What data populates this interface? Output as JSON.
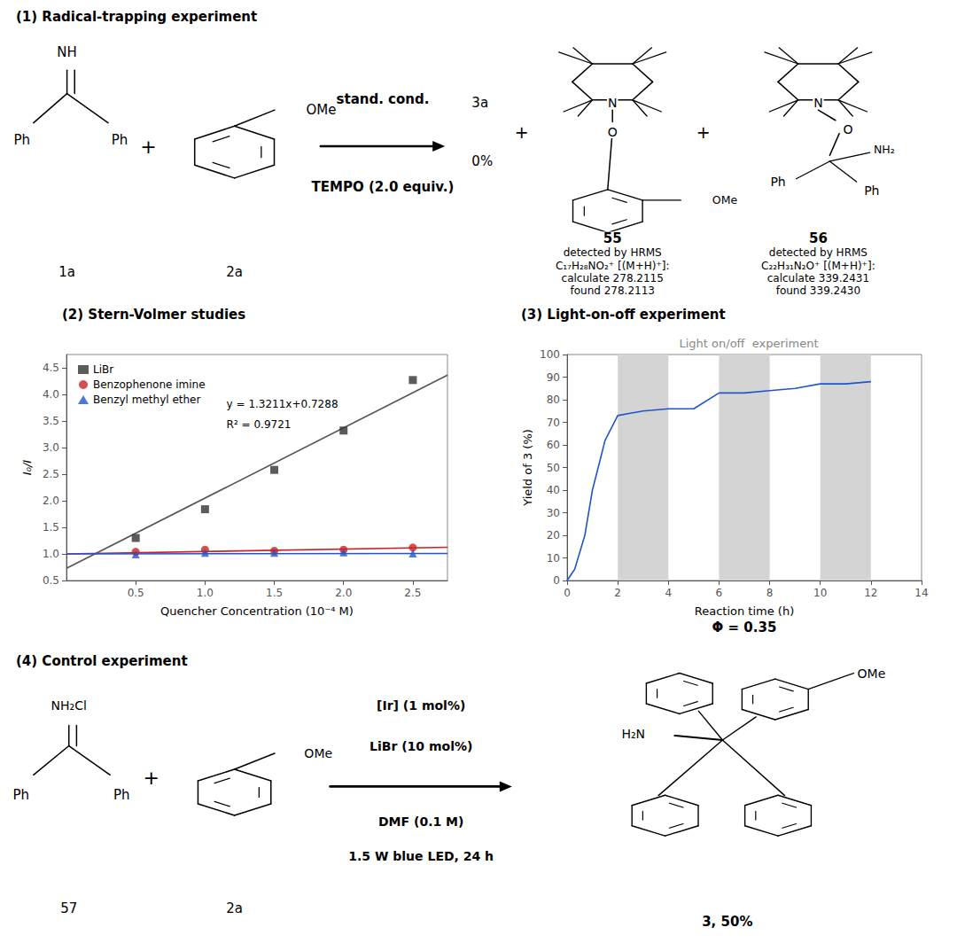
{
  "chart_data": [
    {
      "type": "scheme",
      "title": "(1) Radical-trapping experiment",
      "annotations": [
        "NH",
        "Ph",
        "Ph",
        "1a",
        "+",
        "OMe",
        "2a",
        "stand. cond.",
        "TEMPO (2.0 equiv.)",
        "3a",
        "0%",
        "+",
        "N",
        "O",
        "OMe",
        "55",
        "detected by HRMS",
        "C₁₇H₂₈NO₂⁺ [(M+H)⁺]:",
        "calculate 278.2115",
        "found 278.2113",
        "+",
        "N",
        "O",
        "NH₂",
        "Ph",
        "Ph",
        "56",
        "detected by HRMS",
        "C₂₂H₃₁N₂O⁺ [(M+H)⁺]:",
        "calculate 339.2431",
        "found 339.2430"
      ]
    },
    {
      "type": "scatter",
      "title": "(2) Stern-Volmer studies",
      "x_label": "Quencher Concentration (10⁻⁴ M)",
      "y_label": "I₀/I",
      "xlim": [
        0.0,
        2.75
      ],
      "ylim": [
        0.5,
        4.75
      ],
      "xticks": [
        0.5,
        {
          "value": 1.0,
          "label": "1.0"
        },
        1.5,
        {
          "value": 2.0,
          "label": "2.0"
        },
        2.5
      ],
      "yticks": [
        0.5,
        {
          "value": 1.0,
          "label": "1.0"
        },
        1.5,
        {
          "value": 2.0,
          "label": "2.0"
        },
        2.5,
        {
          "value": 3.0,
          "label": "3.0"
        },
        3.5,
        {
          "value": 4.0,
          "label": "4.0"
        },
        4.5
      ],
      "grid": false,
      "legend": "upper left",
      "annotations": [
        "y = 1.3211x+0.7288",
        "R² = 0.9721"
      ],
      "series": [
        {
          "name": "LiBr",
          "type": "scatter",
          "marker": "square",
          "color": "#333333",
          "x": [
            0.5,
            1.0,
            1.5,
            2.0,
            2.5
          ],
          "values": [
            1.3,
            1.84,
            2.58,
            3.32,
            4.27
          ]
        },
        {
          "name": "Benzophenone imine",
          "type": "scatter",
          "marker": "circle",
          "color": "#cc2222",
          "x": [
            0.5,
            1.0,
            1.5,
            2.0,
            2.5
          ],
          "values": [
            1.04,
            1.08,
            1.06,
            1.08,
            1.12
          ]
        },
        {
          "name": "Benzyl methyl ether",
          "type": "scatter",
          "marker": "triangle",
          "color": "#2255cc",
          "x": [
            0.5,
            1.0,
            1.5,
            2.0,
            2.5
          ],
          "values": [
            0.99,
            1.02,
            1.02,
            1.03,
            1.01
          ]
        },
        {
          "type": "line",
          "color": "#555555",
          "x": [
            0.0,
            2.75
          ],
          "values": [
            0.7288,
            4.361825
          ]
        },
        {
          "type": "line",
          "color": "#cc2222",
          "x": [
            0.0,
            2.75
          ],
          "values": [
            1.0,
            1.12375
          ]
        },
        {
          "type": "line",
          "color": "#2255cc",
          "x": [
            0.0,
            2.75
          ],
          "values": [
            1.0,
            1.00825
          ]
        }
      ]
    },
    {
      "type": "line",
      "title": "(3) Light-on-off experiment",
      "subtitle": "Light on/off  experiment",
      "x_label": "Reaction time (h)",
      "y_label": "Yield of 3 (%)",
      "xlim": [
        0,
        14
      ],
      "ylim": [
        0,
        100
      ],
      "xticks": [
        0,
        2,
        4,
        6,
        8,
        10,
        12,
        14
      ],
      "yticks": [
        0,
        10,
        20,
        30,
        40,
        50,
        60,
        70,
        80,
        90,
        100
      ],
      "grid": false,
      "dark_intervals": {
        "values": [
          [
            2,
            4
          ],
          [
            6,
            8
          ],
          [
            10,
            12
          ]
        ],
        "color": "#d4d4d4"
      },
      "annotations": [
        "Φ = 0.35"
      ],
      "series": [
        {
          "type": "line",
          "color": "#2255cc",
          "x": [
            0,
            0.3,
            0.7,
            1.0,
            1.5,
            2.0,
            2.5,
            3.0,
            4.0,
            5.0,
            6.0,
            7.0,
            8.0,
            9.0,
            10.0,
            11.0,
            12.0
          ],
          "values": [
            0,
            5,
            20,
            40,
            62,
            73,
            74,
            75,
            76,
            76,
            83,
            83,
            84,
            85,
            87,
            87,
            88
          ]
        }
      ]
    },
    {
      "type": "scheme",
      "title": "(4) Control experiment",
      "annotations": [
        "NH₂Cl",
        "Ph",
        "Ph",
        "57",
        "+",
        "OMe",
        "2a",
        "[Ir] (1 mol%)",
        "LiBr (10 mol%)",
        "DMF (0.1 M)",
        "1.5 W blue LED, 24 h",
        "OMe",
        "H₂N",
        "3, 50%"
      ]
    }
  ]
}
